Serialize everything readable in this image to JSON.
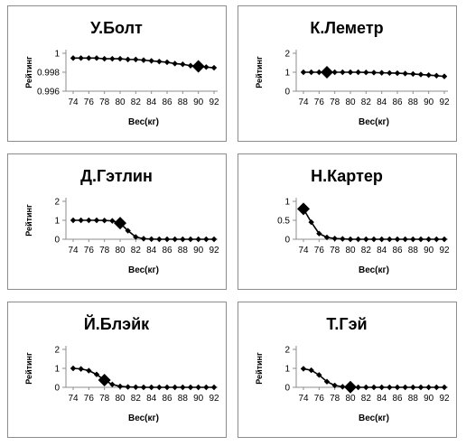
{
  "chart_data": [
    {
      "type": "line",
      "title": "У.Болт",
      "xlabel": "Вес(кг)",
      "ylabel": "Рейтинг",
      "x": [
        74,
        75,
        76,
        77,
        78,
        79,
        80,
        81,
        82,
        83,
        84,
        85,
        86,
        87,
        88,
        89,
        90,
        91,
        92
      ],
      "xticks": [
        "74",
        "76",
        "78",
        "80",
        "82",
        "84",
        "86",
        "88",
        "90",
        "92"
      ],
      "yticks": [
        "0.996",
        "0.998",
        "1"
      ],
      "ylim": [
        0.995,
        1.0005
      ],
      "series": [
        {
          "values": [
            0.9998,
            0.9998,
            0.9998,
            0.9998,
            0.9997,
            0.9997,
            0.9997,
            0.9996,
            0.9996,
            0.9995,
            0.9994,
            0.9993,
            0.9992,
            0.999,
            0.9989,
            0.9987,
            0.9986,
            0.9985,
            0.9984
          ]
        }
      ],
      "highlight_x": 90,
      "color": "#000000"
    },
    {
      "type": "line",
      "title": "К.Леметр",
      "xlabel": "Вес(кг)",
      "ylabel": "Рейтинг",
      "x": [
        74,
        75,
        76,
        77,
        78,
        79,
        80,
        81,
        82,
        83,
        84,
        85,
        86,
        87,
        88,
        89,
        90,
        91,
        92
      ],
      "xticks": [
        "74",
        "76",
        "78",
        "80",
        "82",
        "84",
        "86",
        "88",
        "90",
        "92"
      ],
      "yticks": [
        "0",
        "1",
        "2"
      ],
      "ylim": [
        0,
        2
      ],
      "series": [
        {
          "values": [
            1.0,
            1.0,
            1.0,
            1.0,
            1.0,
            1.0,
            1.0,
            1.0,
            0.99,
            0.98,
            0.97,
            0.96,
            0.95,
            0.93,
            0.91,
            0.88,
            0.85,
            0.82,
            0.78
          ]
        }
      ],
      "highlight_x": 77,
      "color": "#000000"
    },
    {
      "type": "line",
      "title": "Д.Гэтлин",
      "xlabel": "Вес(кг)",
      "ylabel": "Рейтинг",
      "x": [
        74,
        75,
        76,
        77,
        78,
        79,
        80,
        81,
        82,
        83,
        84,
        85,
        86,
        87,
        88,
        89,
        90,
        91,
        92
      ],
      "xticks": [
        "74",
        "76",
        "78",
        "80",
        "82",
        "84",
        "86",
        "88",
        "90",
        "92"
      ],
      "yticks": [
        "0",
        "1",
        "2"
      ],
      "ylim": [
        0,
        2
      ],
      "series": [
        {
          "values": [
            1.0,
            1.0,
            1.0,
            1.0,
            0.99,
            0.97,
            0.85,
            0.45,
            0.12,
            0.03,
            0.01,
            0,
            0,
            0,
            0,
            0,
            0,
            0,
            0
          ]
        }
      ],
      "highlight_x": 80,
      "color": "#000000"
    },
    {
      "type": "line",
      "title": "Н.Картер",
      "xlabel": "Вес(кг)",
      "ylabel": "",
      "x": [
        74,
        75,
        76,
        77,
        78,
        79,
        80,
        81,
        82,
        83,
        84,
        85,
        86,
        87,
        88,
        89,
        90,
        91,
        92
      ],
      "xticks": [
        "74",
        "76",
        "78",
        "80",
        "82",
        "84",
        "86",
        "88",
        "90",
        "92"
      ],
      "yticks": [
        "0",
        "0.5",
        "1"
      ],
      "ylim": [
        0,
        1
      ],
      "series": [
        {
          "values": [
            0.8,
            0.45,
            0.15,
            0.05,
            0.02,
            0.01,
            0,
            0,
            0,
            0,
            0,
            0,
            0,
            0,
            0,
            0,
            0,
            0,
            0
          ]
        }
      ],
      "highlight_x": 74,
      "color": "#000000"
    },
    {
      "type": "line",
      "title": "Й.Блэйк",
      "xlabel": "Вес(кг)",
      "ylabel": "Рейтинг",
      "x": [
        74,
        75,
        76,
        77,
        78,
        79,
        80,
        81,
        82,
        83,
        84,
        85,
        86,
        87,
        88,
        89,
        90,
        91,
        92
      ],
      "xticks": [
        "74",
        "76",
        "78",
        "80",
        "82",
        "84",
        "86",
        "88",
        "90",
        "92"
      ],
      "yticks": [
        "0",
        "1",
        "2"
      ],
      "ylim": [
        0,
        2
      ],
      "series": [
        {
          "values": [
            1.0,
            0.97,
            0.88,
            0.68,
            0.38,
            0.15,
            0.05,
            0.02,
            0.01,
            0,
            0,
            0,
            0,
            0,
            0,
            0,
            0,
            0,
            0
          ]
        }
      ],
      "highlight_x": 78,
      "color": "#000000"
    },
    {
      "type": "line",
      "title": "Т.Гэй",
      "xlabel": "Вес(кг)",
      "ylabel": "Рейтинг",
      "x": [
        74,
        75,
        76,
        77,
        78,
        79,
        80,
        81,
        82,
        83,
        84,
        85,
        86,
        87,
        88,
        89,
        90,
        91,
        92
      ],
      "xticks": [
        "74",
        "76",
        "78",
        "80",
        "82",
        "84",
        "86",
        "88",
        "90",
        "92"
      ],
      "yticks": [
        "0",
        "1",
        "2"
      ],
      "ylim": [
        0,
        2
      ],
      "series": [
        {
          "values": [
            0.98,
            0.9,
            0.65,
            0.3,
            0.1,
            0.03,
            0.01,
            0,
            0,
            0,
            0,
            0,
            0,
            0,
            0,
            0,
            0,
            0,
            0
          ]
        }
      ],
      "highlight_x": 80,
      "color": "#000000"
    }
  ]
}
